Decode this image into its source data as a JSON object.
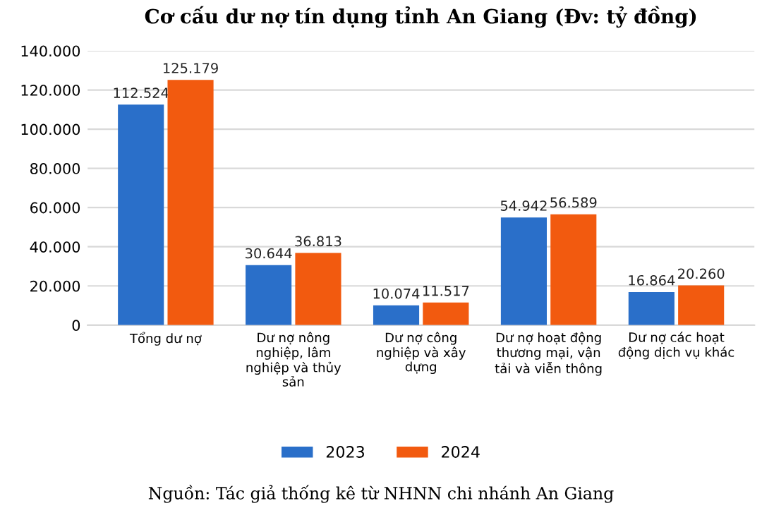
{
  "chart_data": {
    "type": "bar",
    "title": "Cơ cấu dư nợ tín dụng tỉnh An Giang (Đv: tỷ đồng)",
    "categories": [
      "Tổng dư nợ",
      "Dư nợ nông\nnghiệp, lâm\nnghiệp và thủy\nsản",
      "Dư nợ công\nnghiệp và xây\ndựng",
      "Dư nợ hoạt động\nthương mại, vận\ntải và viễn thông",
      "Dư nợ các hoạt\nđộng dịch vụ khác"
    ],
    "series": [
      {
        "name": "2023",
        "color": "#2a6fc9",
        "values": [
          112524,
          30644,
          10074,
          54942,
          16864
        ],
        "value_labels": [
          "112.524",
          "30.644",
          "10.074",
          "54.942",
          "16.864"
        ]
      },
      {
        "name": "2024",
        "color": "#f25a0f",
        "values": [
          125179,
          36813,
          11517,
          56589,
          20260
        ],
        "value_labels": [
          "125.179",
          "36.813",
          "11.517",
          "56.589",
          "20.260"
        ]
      }
    ],
    "ylim": [
      0,
      140000
    ],
    "yticks": [
      0,
      {
        "value": 20000,
        "label": "20.000"
      },
      {
        "value": 40000,
        "label": "40.000"
      },
      {
        "value": 60000,
        "label": "60.000"
      },
      {
        "value": 80000,
        "label": "80.000"
      },
      {
        "value": 100000,
        "label": "100.000"
      },
      {
        "value": 120000,
        "label": "120.000"
      },
      {
        "value": 140000,
        "label": "140.000"
      }
    ],
    "grid": "y",
    "legend": "bottom",
    "annotations": [
      "Nguồn: Tác giả thống kê từ NHNN chi nhánh An Giang"
    ]
  }
}
